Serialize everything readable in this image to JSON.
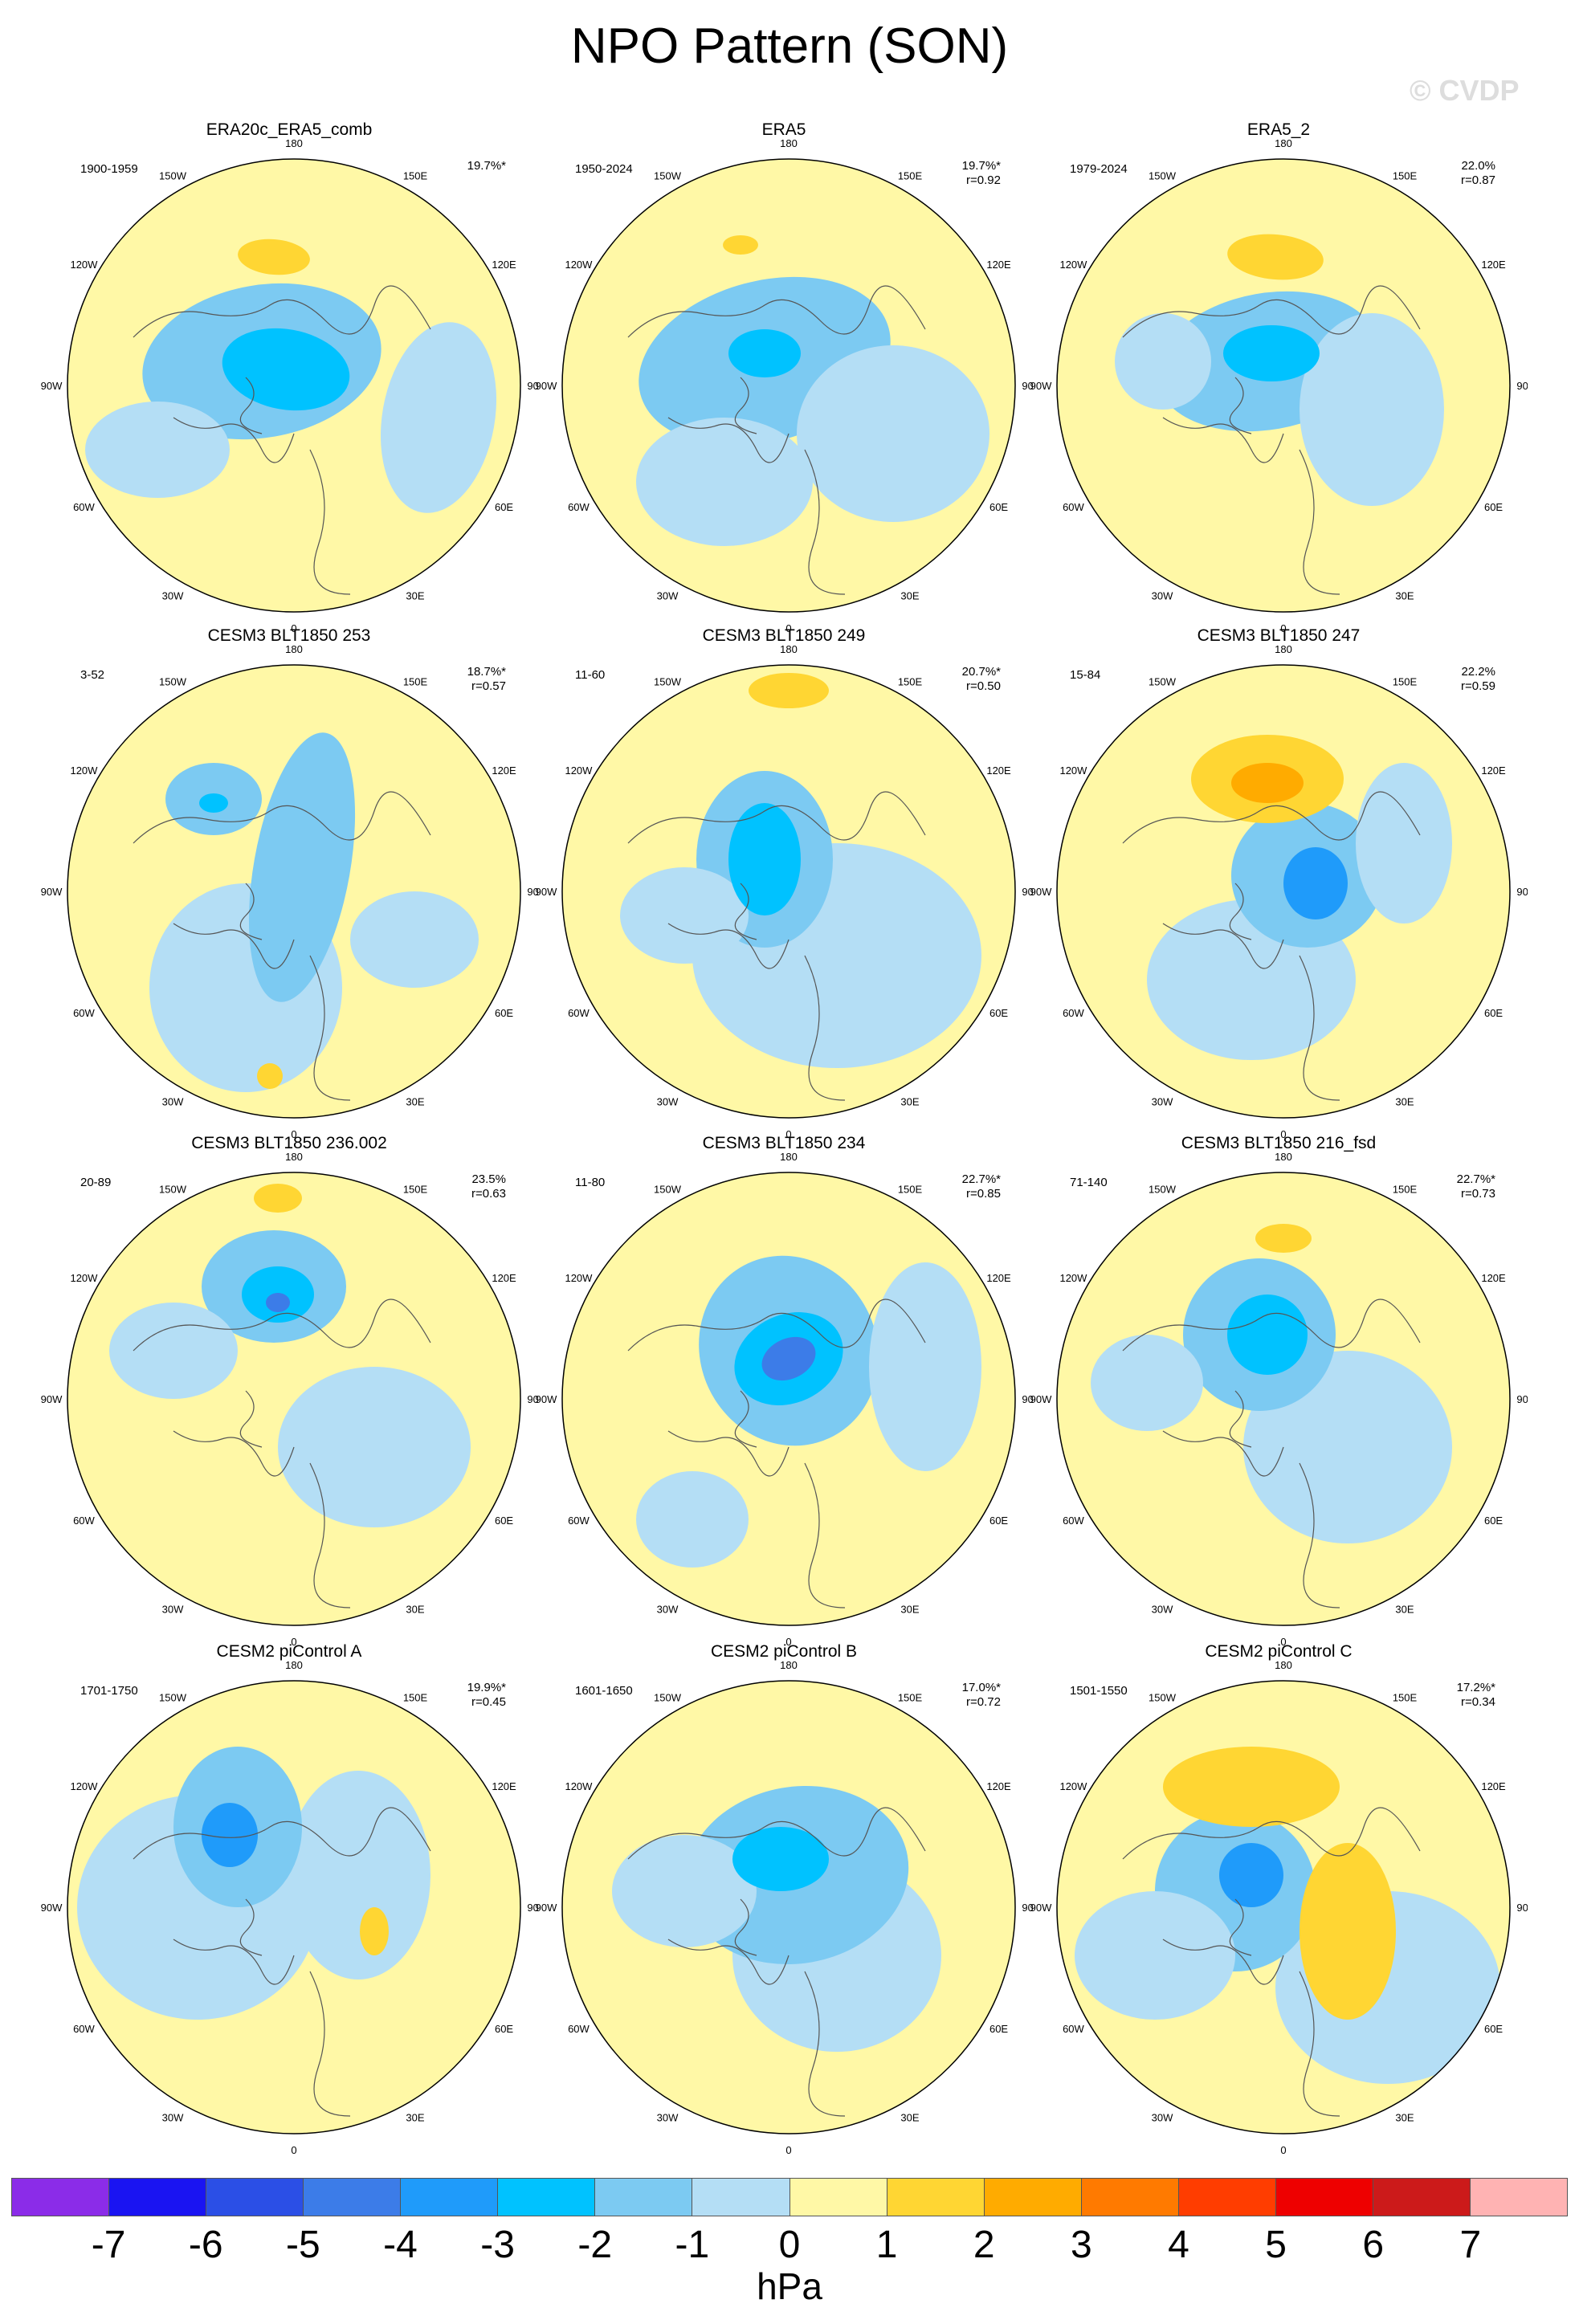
{
  "title": "NPO Pattern (SON)",
  "watermark": "© CVDP",
  "units": "hPa",
  "colorbar": {
    "colors": [
      "#8b2ce8",
      "#1a14f2",
      "#2b4fe6",
      "#3c7ce8",
      "#1f9bfa",
      "#00c2ff",
      "#7ccaf2",
      "#b4def5",
      "#fff8a6",
      "#ffd633",
      "#ffab00",
      "#ff7a00",
      "#ff3d00",
      "#ee0000",
      "#cc1a1a",
      "#ffb3b3"
    ],
    "labels": [
      "-7",
      "-6",
      "-5",
      "-4",
      "-3",
      "-2",
      "-1",
      "0",
      "1",
      "2",
      "3",
      "4",
      "5",
      "6",
      "7"
    ]
  },
  "lon_labels": {
    "top": "180",
    "bottom": "0",
    "left": "90W",
    "right": "90E",
    "ul1": "150W",
    "ul2": "120W",
    "ur1": "150E",
    "ur2": "120E",
    "ll1": "60W",
    "ll2": "30W",
    "lr1": "60E",
    "lr2": "30E"
  },
  "panels": [
    {
      "title": "ERA20c_ERA5_comb",
      "period": "1900-1959",
      "pct": "19.7%*",
      "r": ""
    },
    {
      "title": "ERA5",
      "period": "1950-2024",
      "pct": "19.7%*",
      "r": "r=0.92"
    },
    {
      "title": "ERA5_2",
      "period": "1979-2024",
      "pct": "22.0%",
      "r": "r=0.87"
    },
    {
      "title": "CESM3 BLT1850 253",
      "period": "3-52",
      "pct": "18.7%*",
      "r": "r=0.57"
    },
    {
      "title": "CESM3 BLT1850 249",
      "period": "11-60",
      "pct": "20.7%*",
      "r": "r=0.50"
    },
    {
      "title": "CESM3 BLT1850 247",
      "period": "15-84",
      "pct": "22.2%",
      "r": "r=0.59"
    },
    {
      "title": "CESM3 BLT1850 236.002",
      "period": "20-89",
      "pct": "23.5%",
      "r": "r=0.63"
    },
    {
      "title": "CESM3 BLT1850 234",
      "period": "11-80",
      "pct": "22.7%*",
      "r": "r=0.85"
    },
    {
      "title": "CESM3 BLT1850 216_fsd",
      "period": "71-140",
      "pct": "22.7%*",
      "r": "r=0.73"
    },
    {
      "title": "CESM2 piControl A",
      "period": "1701-1750",
      "pct": "19.9%*",
      "r": "r=0.45"
    },
    {
      "title": "CESM2 piControl B",
      "period": "1601-1650",
      "pct": "17.0%*",
      "r": "r=0.72"
    },
    {
      "title": "CESM2 piControl C",
      "period": "1501-1550",
      "pct": "17.2%*",
      "r": "r=0.34"
    }
  ]
}
